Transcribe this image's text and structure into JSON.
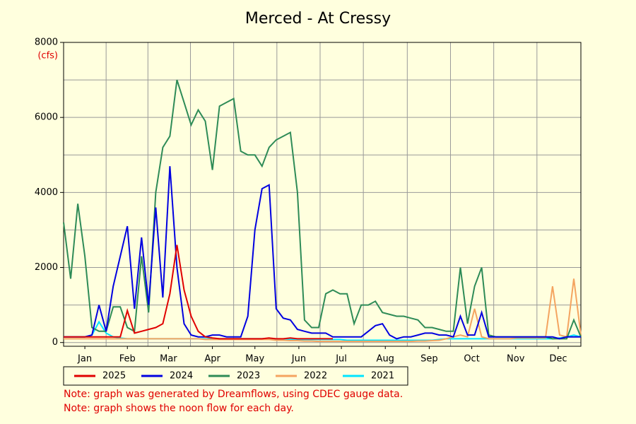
{
  "chart_data": {
    "type": "line",
    "title": "Merced - At Cressy",
    "y_unit": "(cfs)",
    "notes": [
      "Note: graph was generated by Dreamflows, using CDEC gauge data.",
      "Note: graph shows the noon flow for each day."
    ],
    "xlim": [
      1,
      366
    ],
    "xticks": [
      {
        "value": 16,
        "label": "Jan"
      },
      {
        "value": 46,
        "label": "Feb"
      },
      {
        "value": 75,
        "label": "Mar"
      },
      {
        "value": 106,
        "label": "Apr"
      },
      {
        "value": 136,
        "label": "May"
      },
      {
        "value": 167,
        "label": "Jun"
      },
      {
        "value": 197,
        "label": "Jul"
      },
      {
        "value": 228,
        "label": "Aug"
      },
      {
        "value": 259,
        "label": "Sep"
      },
      {
        "value": 289,
        "label": "Oct"
      },
      {
        "value": 320,
        "label": "Nov"
      },
      {
        "value": 350,
        "label": "Dec"
      }
    ],
    "ylim": [
      -100,
      8000
    ],
    "yticks": [
      0,
      2000,
      4000,
      6000,
      8000
    ],
    "ygrid": [
      0,
      1000,
      2000,
      3000,
      4000,
      5000,
      6000,
      7000,
      8000
    ],
    "grid": true,
    "x": [
      1,
      6,
      11,
      16,
      21,
      26,
      31,
      36,
      41,
      46,
      51,
      56,
      61,
      66,
      71,
      76,
      81,
      86,
      91,
      96,
      101,
      106,
      111,
      116,
      121,
      126,
      131,
      136,
      141,
      146,
      151,
      156,
      161,
      166,
      171,
      176,
      181,
      186,
      191,
      196,
      201,
      206,
      211,
      216,
      221,
      226,
      231,
      236,
      241,
      246,
      251,
      256,
      261,
      266,
      271,
      276,
      281,
      286,
      291,
      296,
      301,
      306,
      311,
      316,
      321,
      326,
      331,
      336,
      341,
      346,
      351,
      356,
      361,
      366
    ],
    "series": [
      {
        "name": "2021",
        "color": "#00e5ff",
        "values": [
          150,
          150,
          150,
          150,
          200,
          550,
          250,
          150,
          120,
          100,
          100,
          100,
          100,
          100,
          100,
          100,
          100,
          100,
          100,
          100,
          100,
          100,
          100,
          100,
          100,
          100,
          100,
          100,
          100,
          100,
          80,
          80,
          80,
          80,
          80,
          80,
          80,
          80,
          80,
          80,
          60,
          60,
          60,
          60,
          60,
          60,
          60,
          60,
          60,
          60,
          60,
          60,
          60,
          80,
          100,
          100,
          100,
          100,
          100,
          100,
          100,
          100,
          100,
          100,
          100,
          100,
          100,
          100,
          100,
          100,
          120,
          150,
          200,
          150
        ]
      },
      {
        "name": "2022",
        "color": "#f4a460",
        "values": [
          100,
          100,
          100,
          100,
          100,
          100,
          100,
          100,
          100,
          100,
          100,
          100,
          100,
          100,
          100,
          100,
          100,
          100,
          100,
          100,
          80,
          80,
          80,
          80,
          80,
          80,
          80,
          80,
          80,
          80,
          60,
          60,
          50,
          50,
          40,
          40,
          30,
          30,
          30,
          30,
          30,
          30,
          30,
          30,
          30,
          30,
          30,
          30,
          30,
          30,
          40,
          40,
          50,
          60,
          100,
          150,
          200,
          150,
          900,
          150,
          100,
          100,
          100,
          100,
          120,
          120,
          120,
          120,
          120,
          1500,
          200,
          150,
          1700,
          200
        ]
      },
      {
        "name": "2023",
        "color": "#2e8b57",
        "values": [
          3200,
          1700,
          3700,
          2300,
          400,
          300,
          300,
          950,
          950,
          400,
          300,
          2300,
          800,
          4000,
          5200,
          5500,
          7000,
          6400,
          5800,
          6200,
          5900,
          4600,
          6300,
          6400,
          6500,
          5100,
          5000,
          5000,
          4700,
          5200,
          5400,
          5500,
          5600,
          4000,
          600,
          400,
          400,
          1300,
          1400,
          1300,
          1300,
          500,
          1000,
          1000,
          1100,
          800,
          750,
          700,
          700,
          650,
          600,
          400,
          400,
          350,
          300,
          300,
          2000,
          500,
          1500,
          2000,
          200,
          150,
          150,
          150,
          150,
          150,
          150,
          150,
          150,
          100,
          100,
          100,
          600,
          150
        ]
      },
      {
        "name": "2024",
        "color": "#0000e0",
        "values": [
          150,
          150,
          150,
          150,
          200,
          1000,
          300,
          1500,
          2300,
          3100,
          900,
          2800,
          1000,
          3600,
          1200,
          4700,
          2000,
          500,
          200,
          150,
          150,
          200,
          200,
          150,
          150,
          150,
          700,
          3000,
          4100,
          4200,
          900,
          650,
          600,
          350,
          300,
          250,
          250,
          250,
          150,
          150,
          150,
          150,
          150,
          300,
          450,
          500,
          200,
          100,
          150,
          150,
          200,
          250,
          250,
          200,
          200,
          150,
          700,
          200,
          200,
          800,
          150,
          150,
          150,
          150,
          150,
          150,
          150,
          150,
          150,
          150,
          100,
          150,
          150,
          150
        ]
      },
      {
        "name": "2025",
        "color": "#e00000",
        "values": [
          150,
          150,
          150,
          150,
          150,
          150,
          150,
          150,
          150,
          850,
          250,
          300,
          350,
          400,
          500,
          1300,
          2600,
          1400,
          700,
          300,
          150,
          120,
          100,
          100,
          100,
          100,
          100,
          100,
          100,
          120,
          100,
          100,
          120,
          100,
          100,
          100,
          100,
          100,
          100,
          null,
          null,
          null,
          null,
          null,
          null,
          null,
          null,
          null,
          null,
          null,
          null,
          null,
          null,
          null,
          null,
          null,
          null,
          null,
          null,
          null,
          null,
          null,
          null,
          null,
          null,
          null,
          null,
          null,
          null,
          null,
          null,
          null,
          null,
          null
        ]
      }
    ],
    "legend_order": [
      4,
      3,
      2,
      1,
      0
    ]
  }
}
